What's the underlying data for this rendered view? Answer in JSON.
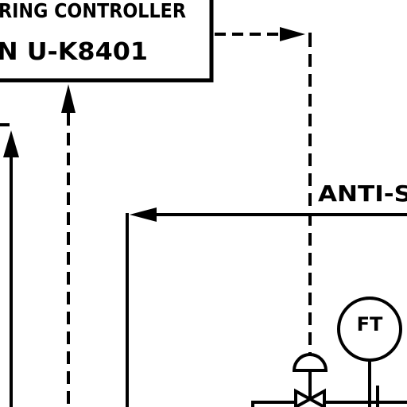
{
  "controller_box": {
    "title_line": "RING CONTROLLER",
    "id_line": "N U-K8401"
  },
  "signals": {
    "anti_surge_label": "ANTI-S"
  },
  "instruments": {
    "flow_transmitter": "FT"
  },
  "colors": {
    "line": "#000000",
    "background": "#ffffff"
  }
}
